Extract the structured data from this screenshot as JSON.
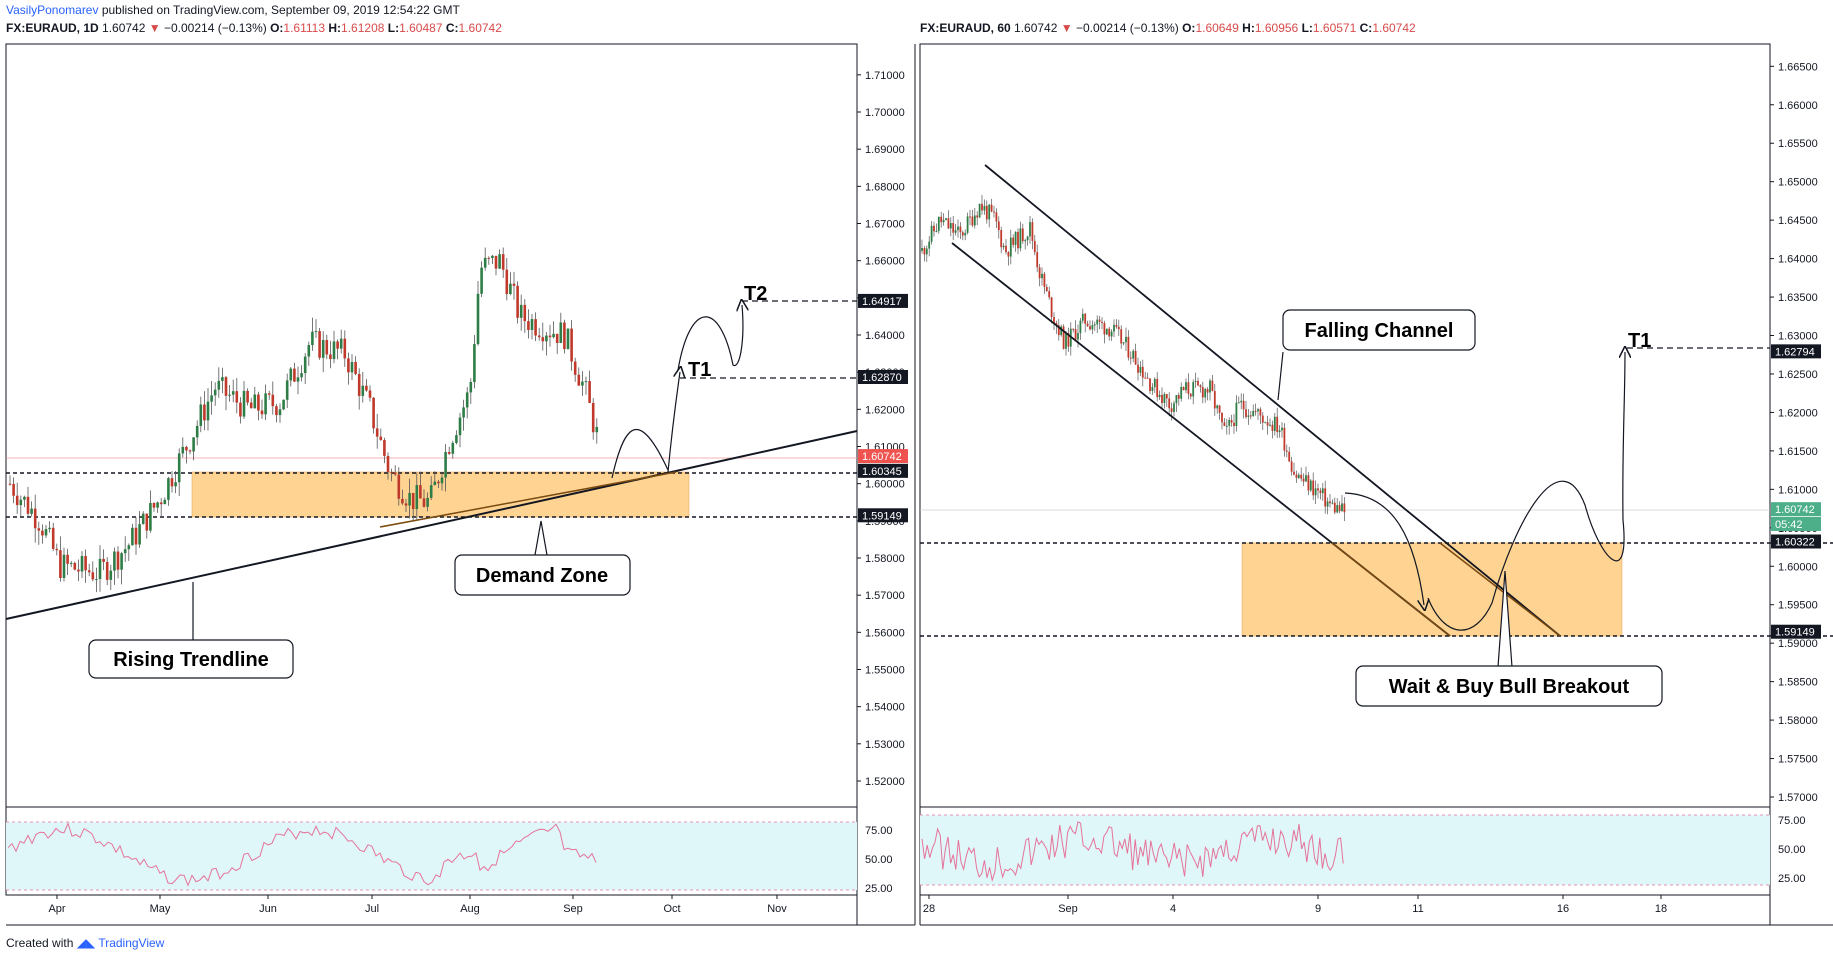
{
  "header": {
    "author": "VasilyPonomarev",
    "published_text": "published on TradingView.com, September 09, 2019 12:54:22 GMT"
  },
  "left": {
    "symbol": "FX:EURAUD, 1D",
    "last": "1.60742",
    "change": "−0.00214 (−0.13%)",
    "o": "1.61113",
    "h": "1.61208",
    "l": "1.60487",
    "c": "1.60742",
    "price_ticks": [
      "1.71000",
      "1.70000",
      "1.69000",
      "1.68000",
      "1.67000",
      "1.66000",
      "1.65000",
      "1.64000",
      "1.63000",
      "1.62000",
      "1.61000",
      "1.60000",
      "1.59000",
      "1.58000",
      "1.57000",
      "1.56000",
      "1.55000",
      "1.54000",
      "1.53000",
      "1.52000"
    ],
    "price_range": [
      1.513,
      1.7183
    ],
    "time_ticks": [
      "Apr",
      "May",
      "Jun",
      "Jul",
      "Aug",
      "Sep",
      "Oct",
      "Nov"
    ],
    "level_tags": [
      {
        "label": "1.64917",
        "value": 1.64917,
        "style": "dark"
      },
      {
        "label": "1.62870",
        "value": 1.6287,
        "style": "dark"
      },
      {
        "label": "1.60742",
        "value": 1.60742,
        "style": "red"
      },
      {
        "label": "1.60345",
        "value": 1.60345,
        "style": "dark"
      },
      {
        "label": "1.59149",
        "value": 1.59149,
        "style": "dark"
      }
    ],
    "annotations": {
      "rising_trendline": "Rising Trendline",
      "demand_zone": "Demand Zone",
      "t1": "T1",
      "t2": "T2"
    },
    "rsi_ticks": [
      "75.00",
      "50.00",
      "25.00"
    ]
  },
  "right": {
    "symbol": "FX:EURAUD, 60",
    "last": "1.60742",
    "change": "−0.00214 (−0.13%)",
    "o": "1.60649",
    "h": "1.60956",
    "l": "1.60571",
    "c": "1.60742",
    "price_ticks": [
      "1.66500",
      "1.66000",
      "1.65500",
      "1.65000",
      "1.64500",
      "1.64000",
      "1.63500",
      "1.63000",
      "1.62500",
      "1.62000",
      "1.61500",
      "1.61000",
      "1.60500",
      "1.60000",
      "1.59500",
      "1.59000",
      "1.58500",
      "1.58000",
      "1.57500",
      "1.57000"
    ],
    "price_range": [
      1.5687,
      1.6679
    ],
    "time_ticks": [
      "28",
      "Sep",
      "4",
      "9",
      "11",
      "16",
      "18"
    ],
    "level_tags": [
      {
        "label": "1.62794",
        "value": 1.62794,
        "style": "dark"
      },
      {
        "label": "1.60742",
        "value": 1.60742,
        "style": "green"
      },
      {
        "label": "05:42",
        "value": 1.6055,
        "style": "green"
      },
      {
        "label": "1.60322",
        "value": 1.60322,
        "style": "dark"
      },
      {
        "label": "1.59149",
        "value": 1.59149,
        "style": "dark"
      }
    ],
    "annotations": {
      "falling_channel": "Falling Channel",
      "wait_buy": "Wait & Buy Bull Breakout",
      "t1": "T1"
    },
    "rsi_ticks": [
      "75.00",
      "50.00",
      "25.00"
    ]
  },
  "footer": {
    "created_with": "Created with",
    "brand": "TradingView"
  },
  "colors": {
    "up": "#2e7d46",
    "down": "#c0392b",
    "zone": "#ffcc80",
    "rsi_bg": "#e0f7fa",
    "rsi_line": "#e57399",
    "tag_dark": "#131722",
    "tag_red": "#ef5350",
    "tag_green": "#4caf8a"
  },
  "chart_data": [
    {
      "type": "line",
      "title": "FX:EURAUD, 1D",
      "candles_note": "",
      "x": [
        "Apr",
        "May",
        "Jun",
        "Jul",
        "Aug",
        "Sep"
      ],
      "series": [
        {
          "name": "",
          "values": [
            1.59,
            1.575,
            1.62,
            1.63,
            1.655,
            1.607
          ]
        }
      ],
      "levels": [
        1.64917,
        1.6287,
        1.60345,
        1.59149
      ],
      "ylim": [
        1.513,
        1.7183
      ]
    },
    {
      "type": "line",
      "title": "FX:EURAUD, 60",
      "x": [
        "28",
        "Sep",
        "4",
        "9"
      ],
      "series": [
        {
          "name": "",
          "values": [
            1.643,
            1.64,
            1.618,
            1.607
          ]
        }
      ],
      "levels": [
        1.62794,
        1.60322,
        1.59149
      ],
      "ylim": [
        1.5687,
        1.6679
      ]
    }
  ]
}
